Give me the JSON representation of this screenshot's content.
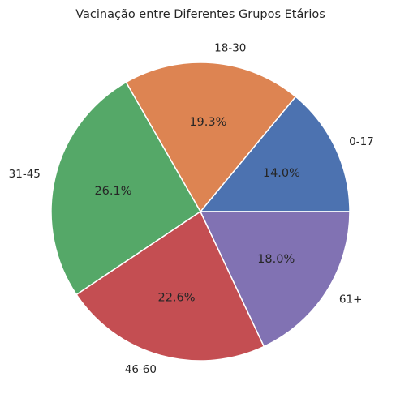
{
  "chart_data": {
    "type": "pie",
    "title": "Vacinação entre Diferentes Grupos Etários",
    "categories": [
      "0-17",
      "18-30",
      "31-45",
      "46-60",
      "61+"
    ],
    "values": [
      14.0,
      19.3,
      26.1,
      22.6,
      18.0
    ],
    "percent_labels": [
      "14.0%",
      "19.3%",
      "26.1%",
      "22.6%",
      "18.0%"
    ],
    "colors": [
      "#4C72B0",
      "#DD8452",
      "#55A868",
      "#C44E52",
      "#8172B3"
    ],
    "start_angle_deg": 0,
    "direction": "counterclockwise",
    "legend": "none"
  }
}
